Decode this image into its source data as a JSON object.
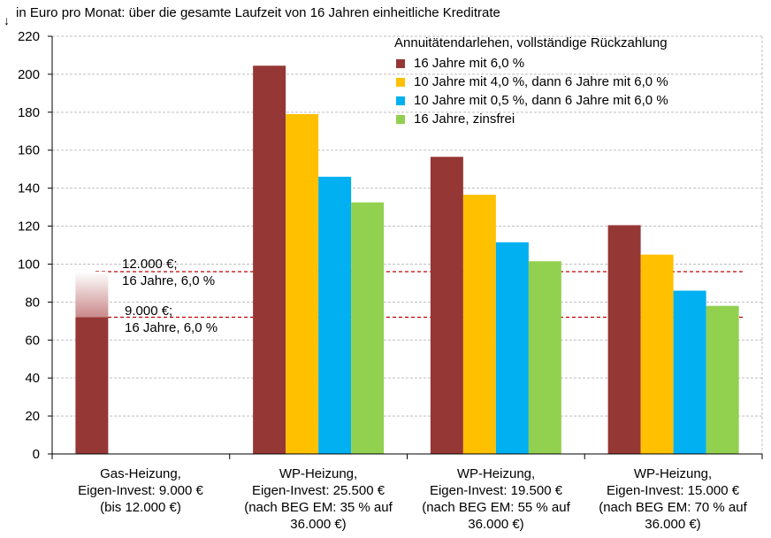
{
  "chart_data": {
    "type": "bar",
    "unit_label": "in Euro pro Monat: über die gesamte Laufzeit von 16 Jahren einheitliche Kreditrate",
    "ylim": [
      0,
      220
    ],
    "ytick_values": [
      0,
      20,
      40,
      60,
      80,
      100,
      120,
      140,
      160,
      180,
      200,
      220
    ],
    "ytick_labels": [
      "0",
      "20",
      "40",
      "60",
      "80",
      "100",
      "120",
      "140",
      "160",
      "180",
      "200",
      "220"
    ],
    "grid": true,
    "legend_position": "top-right",
    "legend_title": "Annuitätendarlehen, vollständige Rückzahlung",
    "categories": [
      "Gas-Heizung,\nEigen-Invest: 9.000 €\n(bis 12.000 €)",
      "WP-Heizung,\nEigen-Invest: 25.500 €\n(nach BEG EM: 35 % auf\n36.000 €)",
      "WP-Heizung,\nEigen-Invest: 19.500 €\n(nach BEG EM: 55 % auf\n36.000 €)",
      "WP-Heizung,\nEigen-Invest: 15.000 €\n(nach BEG EM: 70 % auf\n36.000 €)"
    ],
    "series": [
      {
        "name": "16 Jahre mit 6,0 %",
        "color": "#953735",
        "values": [
          72,
          204.5,
          156.5,
          120.5
        ]
      },
      {
        "name": "10 Jahre mit 4,0 %, dann 6 Jahre mit 6,0 %",
        "color": "#ffc000",
        "values": [
          null,
          179,
          136.5,
          105
        ]
      },
      {
        "name": "10 Jahre mit 0,5 %, dann 6 Jahre mit 6,0 %",
        "color": "#00b0f0",
        "values": [
          null,
          146,
          111.5,
          86
        ]
      },
      {
        "name": "16 Jahre, zinsfrei",
        "color": "#92d050",
        "values": [
          null,
          132.5,
          101.5,
          78
        ]
      }
    ],
    "gas_range_upper": 96,
    "reference_lines": [
      {
        "value": 96,
        "label": "12.000 €;\n16 Jahre, 6,0 %",
        "color": "#c00000"
      },
      {
        "value": 72,
        "label": "9.000 €;\n16 Jahre, 6,0 %",
        "color": "#c00000"
      }
    ]
  }
}
